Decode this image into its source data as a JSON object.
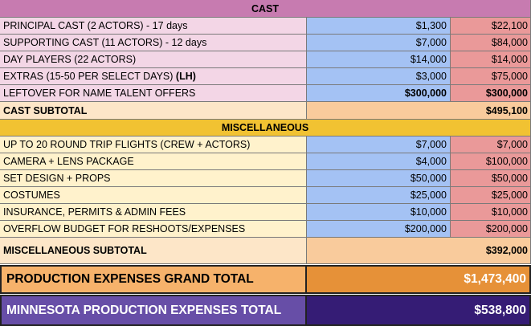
{
  "colors": {
    "cast_header": "#c77bb0",
    "cast_label": "#f3d6e6",
    "budget_blue": "#a4c2f4",
    "budget_pink": "#ea9999",
    "subtotal_label": "#fde6c8",
    "subtotal_value": "#f9cb9c",
    "misc_header": "#f1c232",
    "misc_label": "#fff2cc",
    "grand_total": "#f6b26b",
    "grand_total_value": "#e69138",
    "mn_total": "#674ea7",
    "mn_total_value": "#351c75"
  },
  "cast": {
    "header": "CAST",
    "rows": [
      {
        "label": "PRINCIPAL CAST (2 ACTORS) - 17 days",
        "rate": "$1,300",
        "total": "$22,100"
      },
      {
        "label": "SUPPORTING CAST (11 ACTORS) - 12 days",
        "rate": "$7,000",
        "total": "$84,000"
      },
      {
        "label": "DAY PLAYERS (22 ACTORS)",
        "rate": "$14,000",
        "total": "$14,000"
      },
      {
        "label": "EXTRAS (15-50 PER SELECT DAYS)",
        "label_suffix": "(LH)",
        "rate": "$3,000",
        "total": "$75,000"
      },
      {
        "label": "LEFTOVER FOR NAME TALENT OFFERS",
        "rate": "$300,000",
        "total": "$300,000"
      }
    ],
    "subtotal_label": "CAST SUBTOTAL",
    "subtotal_value": "$495,100"
  },
  "misc": {
    "header": "MISCELLANEOUS",
    "rows": [
      {
        "label": "UP TO 20 ROUND TRIP FLIGHTS (CREW + ACTORS)",
        "rate": "$7,000",
        "total": "$7,000"
      },
      {
        "label": "CAMERA + LENS PACKAGE",
        "rate": "$4,000",
        "total": "$100,000"
      },
      {
        "label": "SET DESIGN + PROPS",
        "rate": "$50,000",
        "total": "$50,000"
      },
      {
        "label": "COSTUMES",
        "rate": "$25,000",
        "total": "$25,000"
      },
      {
        "label": "INSURANCE, PERMITS & ADMIN FEES",
        "rate": "$10,000",
        "total": "$10,000"
      },
      {
        "label": "OVERFLOW BUDGET FOR RESHOOTS/EXPENSES",
        "rate": "$200,000",
        "total": "$200,000"
      }
    ],
    "subtotal_label": "MISCELLANEOUS SUBTOTAL",
    "subtotal_value": "$392,000"
  },
  "grand_total": {
    "label": "PRODUCTION EXPENSES GRAND TOTAL",
    "value": "$1,473,400"
  },
  "mn_total": {
    "label": "MINNESOTA PRODUCTION EXPENSES TOTAL",
    "value": "$538,800"
  }
}
